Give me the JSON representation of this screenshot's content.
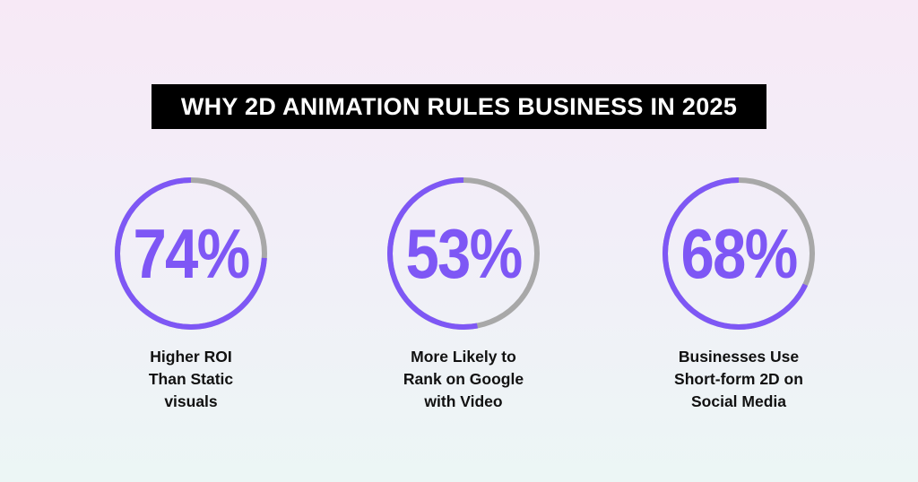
{
  "title": "WHY 2D ANIMATION RULES BUSINESS IN 2025",
  "colors": {
    "accent": "#7e57f5",
    "track": "#a8a8a8",
    "title_bg": "#000000",
    "title_text": "#ffffff",
    "label_text": "#111111"
  },
  "chart_data": {
    "type": "pie",
    "stats": [
      {
        "value": 74,
        "display": "74%",
        "label_lines": [
          "Higher ROI",
          "Than Static",
          "visuals"
        ]
      },
      {
        "value": 53,
        "display": "53%",
        "label_lines": [
          "More Likely to",
          "Rank on Google",
          "with Video"
        ]
      },
      {
        "value": 68,
        "display": "68%",
        "label_lines": [
          "Businesses Use",
          "Short-form 2D on",
          "Social Media"
        ]
      }
    ]
  }
}
